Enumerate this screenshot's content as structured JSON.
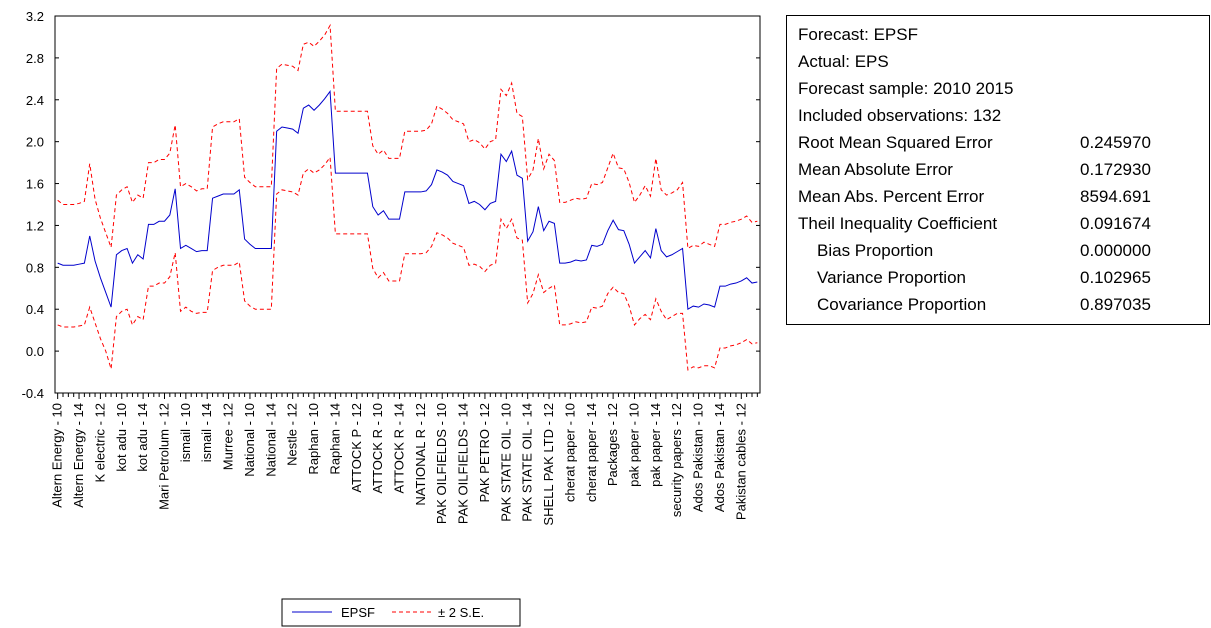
{
  "chart_data": {
    "type": "line",
    "yticks": [
      -0.4,
      0.0,
      0.4,
      0.8,
      1.2,
      1.6,
      2.0,
      2.4,
      2.8,
      3.2
    ],
    "ylim": [
      -0.4,
      3.2
    ],
    "n_obs": 132,
    "x_labels": [
      "Altern Energy - 10",
      "Altern Energy - 14",
      "K electric - 12",
      "kot adu - 10",
      "kot adu - 14",
      "Mari Petrolum - 12",
      "ismail - 10",
      "ismail - 14",
      "Murree - 12",
      "National - 10",
      "National - 14",
      "Nestle - 12",
      "Raphan - 10",
      "Raphan - 14",
      "ATTOCK P - 12",
      "ATTOCK R - 10",
      "ATTOCK R - 14",
      "NATIONAL R - 12",
      "PAK OILFIELDS - 10",
      "PAK OILFIELDS - 14",
      "PAK PETRO - 12",
      "PAK STATE OIL - 10",
      "PAK STATE OIL - 14",
      "SHELL PAK LTD - 12",
      "cherat paper - 10",
      "cherat paper - 14",
      "Packages - 12",
      "pak paper - 10",
      "pak paper - 14",
      "security papers - 12",
      "Ados Pakistan - 10",
      "Ados Pakistan - 14",
      "Pakistan cables - 12"
    ],
    "series": [
      {
        "name": "EPSF",
        "color": "#0000cc",
        "style": "solid",
        "values": [
          0.84,
          0.82,
          0.82,
          0.82,
          0.83,
          0.84,
          1.1,
          0.86,
          0.7,
          0.56,
          0.42,
          0.92,
          0.96,
          0.98,
          0.84,
          0.92,
          0.88,
          1.21,
          1.21,
          1.24,
          1.24,
          1.3,
          1.55,
          0.98,
          1.01,
          0.98,
          0.95,
          0.96,
          0.96,
          1.46,
          1.48,
          1.5,
          1.5,
          1.5,
          1.54,
          1.07,
          1.02,
          0.98,
          0.98,
          0.98,
          0.98,
          2.1,
          2.14,
          2.13,
          2.12,
          2.08,
          2.32,
          2.35,
          2.3,
          2.35,
          2.41,
          2.48,
          1.7,
          1.7,
          1.7,
          1.7,
          1.7,
          1.7,
          1.7,
          1.38,
          1.3,
          1.34,
          1.26,
          1.26,
          1.26,
          1.52,
          1.52,
          1.52,
          1.52,
          1.53,
          1.59,
          1.73,
          1.71,
          1.68,
          1.62,
          1.6,
          1.58,
          1.41,
          1.43,
          1.4,
          1.35,
          1.41,
          1.43,
          1.88,
          1.81,
          1.91,
          1.68,
          1.65,
          1.05,
          1.14,
          1.38,
          1.15,
          1.24,
          1.22,
          0.84,
          0.84,
          0.85,
          0.87,
          0.86,
          0.87,
          1.01,
          1.0,
          1.02,
          1.15,
          1.25,
          1.16,
          1.15,
          1.02,
          0.84,
          0.9,
          0.96,
          0.89,
          1.17,
          0.96,
          0.9,
          0.92,
          0.95,
          0.98,
          0.4,
          0.43,
          0.42,
          0.45,
          0.44,
          0.42,
          0.62,
          0.62,
          0.64,
          0.65,
          0.67,
          0.7,
          0.65,
          0.66
        ]
      },
      {
        "name": "± 2 S.E.",
        "color": "#ff0000",
        "style": "dashed",
        "values": [
          1.44,
          1.4,
          1.4,
          1.4,
          1.41,
          1.43,
          1.79,
          1.45,
          1.27,
          1.13,
          0.99,
          1.49,
          1.54,
          1.57,
          1.42,
          1.49,
          1.46,
          1.8,
          1.8,
          1.83,
          1.83,
          1.89,
          2.16,
          1.57,
          1.6,
          1.57,
          1.53,
          1.55,
          1.55,
          2.14,
          2.17,
          2.19,
          2.19,
          2.19,
          2.22,
          1.66,
          1.61,
          1.57,
          1.57,
          1.57,
          1.57,
          2.7,
          2.74,
          2.73,
          2.72,
          2.68,
          2.93,
          2.95,
          2.91,
          2.96,
          3.02,
          3.11,
          2.29,
          2.29,
          2.29,
          2.29,
          2.29,
          2.29,
          2.29,
          1.96,
          1.88,
          1.92,
          1.84,
          1.84,
          1.84,
          2.1,
          2.1,
          2.1,
          2.1,
          2.11,
          2.17,
          2.34,
          2.31,
          2.27,
          2.21,
          2.19,
          2.17,
          2.0,
          2.02,
          1.99,
          1.93,
          2.0,
          2.02,
          2.5,
          2.44,
          2.56,
          2.27,
          2.24,
          1.64,
          1.73,
          2.03,
          1.74,
          1.88,
          1.82,
          1.42,
          1.42,
          1.44,
          1.46,
          1.45,
          1.46,
          1.6,
          1.59,
          1.61,
          1.75,
          1.89,
          1.75,
          1.74,
          1.61,
          1.42,
          1.49,
          1.58,
          1.48,
          1.84,
          1.54,
          1.49,
          1.51,
          1.54,
          1.61,
          0.98,
          1.01,
          1.0,
          1.04,
          1.02,
          1.0,
          1.21,
          1.21,
          1.23,
          1.24,
          1.26,
          1.29,
          1.23,
          1.24
        ]
      },
      {
        "name": "- 2 S.E.",
        "color": "#ff0000",
        "style": "dashed",
        "values": [
          0.25,
          0.23,
          0.23,
          0.23,
          0.24,
          0.25,
          0.42,
          0.27,
          0.12,
          0.0,
          -0.17,
          0.33,
          0.38,
          0.4,
          0.25,
          0.33,
          0.3,
          0.62,
          0.62,
          0.65,
          0.65,
          0.71,
          0.94,
          0.38,
          0.42,
          0.38,
          0.36,
          0.37,
          0.37,
          0.77,
          0.8,
          0.82,
          0.82,
          0.82,
          0.85,
          0.48,
          0.43,
          0.4,
          0.4,
          0.4,
          0.4,
          1.5,
          1.54,
          1.53,
          1.52,
          1.49,
          1.7,
          1.74,
          1.7,
          1.73,
          1.78,
          1.85,
          1.12,
          1.12,
          1.12,
          1.12,
          1.12,
          1.12,
          1.12,
          0.79,
          0.7,
          0.75,
          0.67,
          0.67,
          0.67,
          0.93,
          0.93,
          0.93,
          0.93,
          0.94,
          1.0,
          1.13,
          1.11,
          1.08,
          1.03,
          1.01,
          0.99,
          0.82,
          0.83,
          0.81,
          0.76,
          0.82,
          0.84,
          1.26,
          1.17,
          1.26,
          1.08,
          1.06,
          0.46,
          0.55,
          0.73,
          0.56,
          0.6,
          0.63,
          0.25,
          0.25,
          0.26,
          0.28,
          0.27,
          0.28,
          0.42,
          0.41,
          0.43,
          0.55,
          0.61,
          0.56,
          0.55,
          0.43,
          0.25,
          0.31,
          0.35,
          0.3,
          0.5,
          0.38,
          0.3,
          0.33,
          0.36,
          0.36,
          -0.18,
          -0.15,
          -0.16,
          -0.14,
          -0.14,
          -0.16,
          0.03,
          0.03,
          0.05,
          0.06,
          0.08,
          0.11,
          0.07,
          0.08
        ]
      }
    ]
  },
  "legend": {
    "items": [
      {
        "label": "EPSF",
        "color": "#0000cc",
        "style": "solid"
      },
      {
        "label": "± 2 S.E.",
        "color": "#ff0000",
        "style": "dashed"
      }
    ]
  },
  "stats": {
    "forecast": "Forecast: EPSF",
    "actual": "Actual: EPS",
    "sample": "Forecast sample: 2010 2015",
    "included": "Included observations: 132",
    "rows": [
      {
        "label": "Root Mean Squared Error",
        "value": "0.245970"
      },
      {
        "label": "Mean Absolute Error",
        "value": "0.172930"
      },
      {
        "label": "Mean Abs. Percent Error",
        "value": "8594.691"
      },
      {
        "label": "Theil Inequality Coefficient",
        "value": "0.091674"
      },
      {
        "label": "Bias Proportion",
        "value": "0.000000"
      },
      {
        "label": "Variance Proportion",
        "value": "0.102965"
      },
      {
        "label": "Covariance Proportion",
        "value": "0.897035"
      }
    ]
  }
}
